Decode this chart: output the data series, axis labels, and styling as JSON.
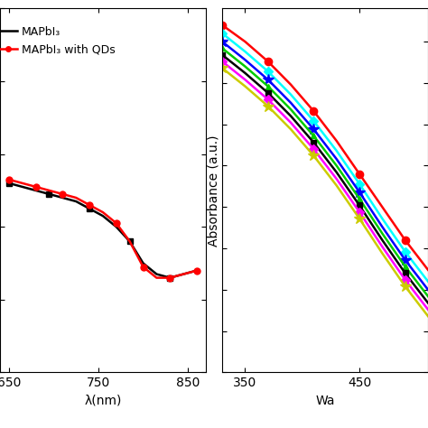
{
  "background_color": "#ffffff",
  "left_panel": {
    "xlabel": "λ(nm)",
    "xlim": [
      640,
      870
    ],
    "ylim": [
      0.0,
      1.0
    ],
    "xticks": [
      650,
      750,
      850
    ],
    "legend": [
      "MAPbI₃",
      "MAPbI₃ with QDs"
    ],
    "black_x": [
      650,
      665,
      680,
      695,
      710,
      725,
      740,
      755,
      770,
      785,
      800,
      815,
      830,
      845,
      860
    ],
    "black_y": [
      0.52,
      0.51,
      0.5,
      0.49,
      0.48,
      0.47,
      0.45,
      0.43,
      0.4,
      0.36,
      0.3,
      0.27,
      0.26,
      0.27,
      0.28
    ],
    "red_x": [
      650,
      665,
      680,
      695,
      710,
      725,
      740,
      755,
      770,
      785,
      800,
      815,
      830,
      845,
      860
    ],
    "red_y": [
      0.53,
      0.52,
      0.51,
      0.5,
      0.49,
      0.48,
      0.46,
      0.44,
      0.41,
      0.36,
      0.29,
      0.26,
      0.26,
      0.27,
      0.28
    ]
  },
  "right_panel": {
    "xlabel": "Wa",
    "ylabel": "Absorbance (a.u.)",
    "xlim": [
      330,
      510
    ],
    "ylim": [
      0.0,
      2.2
    ],
    "xticks": [
      350,
      450
    ],
    "series": [
      {
        "color": "#ff0000",
        "marker": "o",
        "x": [
          330,
          350,
          370,
          390,
          410,
          430,
          450,
          470,
          490,
          510
        ],
        "y": [
          2.1,
          2.0,
          1.88,
          1.74,
          1.58,
          1.4,
          1.2,
          1.0,
          0.8,
          0.62
        ]
      },
      {
        "color": "#00ffff",
        "marker": "D",
        "x": [
          330,
          350,
          370,
          390,
          410,
          430,
          450,
          470,
          490,
          510
        ],
        "y": [
          2.05,
          1.94,
          1.82,
          1.68,
          1.52,
          1.34,
          1.14,
          0.93,
          0.73,
          0.55
        ]
      },
      {
        "color": "#0000ff",
        "marker": "*",
        "x": [
          330,
          350,
          370,
          390,
          410,
          430,
          450,
          470,
          490,
          510
        ],
        "y": [
          2.0,
          1.89,
          1.77,
          1.63,
          1.47,
          1.29,
          1.09,
          0.88,
          0.68,
          0.5
        ]
      },
      {
        "color": "#00cc00",
        "marker": "^",
        "x": [
          330,
          350,
          370,
          390,
          410,
          430,
          450,
          470,
          490,
          510
        ],
        "y": [
          1.96,
          1.85,
          1.73,
          1.59,
          1.43,
          1.25,
          1.05,
          0.84,
          0.64,
          0.46
        ]
      },
      {
        "color": "#000000",
        "marker": "s",
        "x": [
          330,
          350,
          370,
          390,
          410,
          430,
          450,
          470,
          490,
          510
        ],
        "y": [
          1.92,
          1.81,
          1.69,
          1.55,
          1.39,
          1.21,
          1.01,
          0.8,
          0.6,
          0.42
        ]
      },
      {
        "color": "#ff00ff",
        "marker": "D",
        "x": [
          330,
          350,
          370,
          390,
          410,
          430,
          450,
          470,
          490,
          510
        ],
        "y": [
          1.88,
          1.77,
          1.65,
          1.51,
          1.35,
          1.17,
          0.97,
          0.76,
          0.56,
          0.38
        ]
      },
      {
        "color": "#cccc00",
        "marker": "*",
        "x": [
          330,
          350,
          370,
          390,
          410,
          430,
          450,
          470,
          490,
          510
        ],
        "y": [
          1.84,
          1.73,
          1.61,
          1.47,
          1.31,
          1.13,
          0.93,
          0.72,
          0.52,
          0.34
        ]
      }
    ]
  }
}
